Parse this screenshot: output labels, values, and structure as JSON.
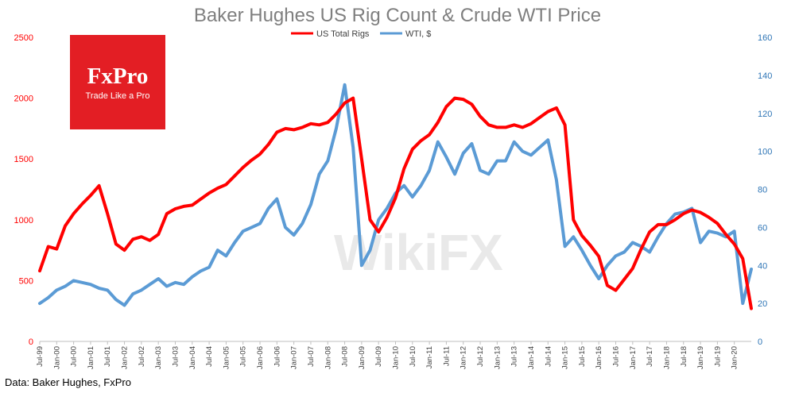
{
  "chart_data": {
    "type": "line",
    "title": "Baker Hughes US Rig Count & Crude WTI Price",
    "colors": {
      "rigs": "#ff0000",
      "wti": "#5b9bd5",
      "left_axis": "#ff0000",
      "right_axis": "#2e75b6"
    },
    "y_left": {
      "min": 0,
      "max": 2500,
      "ticks": [
        "0",
        "500",
        "1000",
        "1500",
        "2000",
        "2500"
      ]
    },
    "y_right": {
      "min": 0,
      "max": 160,
      "ticks": [
        "0",
        "20",
        "40",
        "60",
        "80",
        "100",
        "120",
        "140",
        "160"
      ]
    },
    "x_range": [
      1999.5,
      2020.5
    ],
    "x_ticks": [
      "Jul-99",
      "Jan-00",
      "Jul-00",
      "Jan-01",
      "Jul-01",
      "Jan-02",
      "Jul-02",
      "Jan-03",
      "Jul-03",
      "Jan-04",
      "Jul-04",
      "Jan-05",
      "Jul-05",
      "Jan-06",
      "Jul-06",
      "Jan-07",
      "Jul-07",
      "Jan-08",
      "Jul-08",
      "Jan-09",
      "Jul-09",
      "Jan-10",
      "Jul-10",
      "Jan-11",
      "Jul-11",
      "Jan-12",
      "Jul-12",
      "Jan-13",
      "Jul-13",
      "Jan-14",
      "Jul-14",
      "Jan-15",
      "Jul-15",
      "Jan-16",
      "Jul-16",
      "Jan-17",
      "Jul-17",
      "Jan-18",
      "Jul-18",
      "Jan-19",
      "Jul-19",
      "Jan-20"
    ],
    "legend_position": "top-center",
    "series": [
      {
        "name": "US Total Rigs",
        "axis": "left",
        "x": [
          1999.5,
          1999.75,
          2000.0,
          2000.25,
          2000.5,
          2000.75,
          2001.0,
          2001.25,
          2001.5,
          2001.75,
          2002.0,
          2002.25,
          2002.5,
          2002.75,
          2003.0,
          2003.25,
          2003.5,
          2003.75,
          2004.0,
          2004.25,
          2004.5,
          2004.75,
          2005.0,
          2005.25,
          2005.5,
          2005.75,
          2006.0,
          2006.25,
          2006.5,
          2006.75,
          2007.0,
          2007.25,
          2007.5,
          2007.75,
          2008.0,
          2008.25,
          2008.5,
          2008.75,
          2009.0,
          2009.25,
          2009.5,
          2009.75,
          2010.0,
          2010.25,
          2010.5,
          2010.75,
          2011.0,
          2011.25,
          2011.5,
          2011.75,
          2012.0,
          2012.25,
          2012.5,
          2012.75,
          2013.0,
          2013.25,
          2013.5,
          2013.75,
          2014.0,
          2014.25,
          2014.5,
          2014.75,
          2015.0,
          2015.25,
          2015.5,
          2015.75,
          2016.0,
          2016.25,
          2016.5,
          2016.75,
          2017.0,
          2017.25,
          2017.5,
          2017.75,
          2018.0,
          2018.25,
          2018.5,
          2018.75,
          2019.0,
          2019.25,
          2019.5,
          2019.75,
          2020.0,
          2020.25,
          2020.5
        ],
        "values": [
          580,
          780,
          760,
          950,
          1050,
          1130,
          1200,
          1280,
          1050,
          800,
          750,
          840,
          860,
          830,
          880,
          1050,
          1090,
          1110,
          1120,
          1170,
          1220,
          1260,
          1290,
          1360,
          1430,
          1490,
          1540,
          1620,
          1720,
          1750,
          1740,
          1760,
          1790,
          1780,
          1800,
          1870,
          1960,
          2000,
          1500,
          1000,
          900,
          1020,
          1180,
          1420,
          1580,
          1650,
          1700,
          1800,
          1930,
          2000,
          1990,
          1950,
          1850,
          1780,
          1760,
          1760,
          1780,
          1760,
          1790,
          1840,
          1890,
          1920,
          1780,
          1000,
          870,
          790,
          700,
          460,
          420,
          510,
          600,
          760,
          900,
          960,
          960,
          1000,
          1050,
          1080,
          1060,
          1020,
          970,
          880,
          800,
          680,
          270
        ]
      },
      {
        "name": "WTI, $",
        "axis": "right",
        "x": [
          1999.5,
          1999.75,
          2000.0,
          2000.25,
          2000.5,
          2000.75,
          2001.0,
          2001.25,
          2001.5,
          2001.75,
          2002.0,
          2002.25,
          2002.5,
          2002.75,
          2003.0,
          2003.25,
          2003.5,
          2003.75,
          2004.0,
          2004.25,
          2004.5,
          2004.75,
          2005.0,
          2005.25,
          2005.5,
          2005.75,
          2006.0,
          2006.25,
          2006.5,
          2006.75,
          2007.0,
          2007.25,
          2007.5,
          2007.75,
          2008.0,
          2008.25,
          2008.5,
          2008.75,
          2009.0,
          2009.25,
          2009.5,
          2009.75,
          2010.0,
          2010.25,
          2010.5,
          2010.75,
          2011.0,
          2011.25,
          2011.5,
          2011.75,
          2012.0,
          2012.25,
          2012.5,
          2012.75,
          2013.0,
          2013.25,
          2013.5,
          2013.75,
          2014.0,
          2014.25,
          2014.5,
          2014.75,
          2015.0,
          2015.25,
          2015.5,
          2015.75,
          2016.0,
          2016.25,
          2016.5,
          2016.75,
          2017.0,
          2017.25,
          2017.5,
          2017.75,
          2018.0,
          2018.25,
          2018.5,
          2018.75,
          2019.0,
          2019.25,
          2019.5,
          2019.75,
          2020.0,
          2020.25,
          2020.5
        ],
        "values": [
          20,
          23,
          27,
          29,
          32,
          31,
          30,
          28,
          27,
          22,
          19,
          25,
          27,
          30,
          33,
          29,
          31,
          30,
          34,
          37,
          39,
          48,
          45,
          52,
          58,
          60,
          62,
          70,
          75,
          60,
          56,
          62,
          72,
          88,
          95,
          112,
          135,
          102,
          40,
          48,
          64,
          70,
          78,
          82,
          76,
          82,
          90,
          105,
          97,
          88,
          99,
          104,
          90,
          88,
          95,
          95,
          105,
          100,
          98,
          102,
          106,
          85,
          50,
          55,
          48,
          40,
          33,
          40,
          45,
          47,
          52,
          50,
          47,
          55,
          62,
          67,
          68,
          70,
          52,
          58,
          57,
          55,
          58,
          20,
          38
        ]
      }
    ]
  },
  "logo": {
    "name": "FxPro",
    "tagline": "Trade Like a Pro"
  },
  "watermark": "WikiFX",
  "source": "Data: Baker Hughes, FxPro"
}
